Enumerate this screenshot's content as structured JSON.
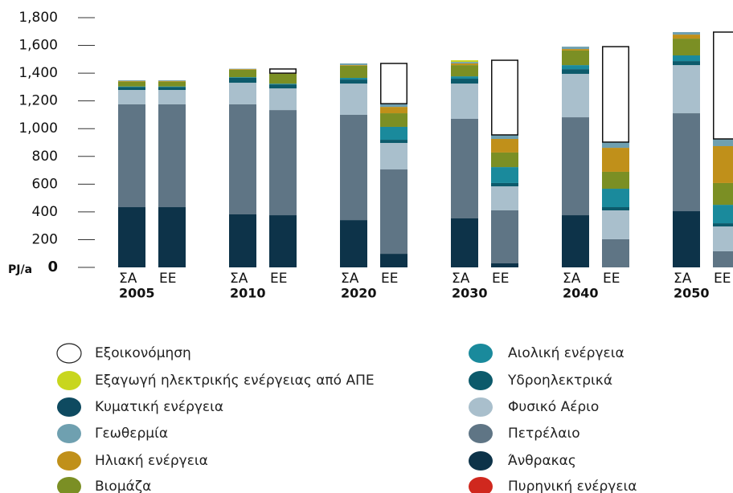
{
  "chart_data": {
    "type": "stacked_bar",
    "y_unit": "PJ/a",
    "ylim": [
      0,
      1800
    ],
    "yticks": [
      0,
      200,
      400,
      600,
      800,
      {
        "value": 1000,
        "label": "1,000"
      },
      {
        "value": 1200,
        "label": "1,200"
      },
      {
        "value": 1400,
        "label": "1,400"
      },
      {
        "value": 1600,
        "label": "1,600"
      },
      {
        "value": 1800,
        "label": "1,800"
      }
    ],
    "groups": [
      "2005",
      "2010",
      "2020",
      "2030",
      "2040",
      "2050"
    ],
    "categories": [
      "ΣΑ",
      "ΕΕ",
      "ΣΑ",
      "ΕΕ",
      "ΣΑ",
      "ΕΕ",
      "ΣΑ",
      "ΕΕ",
      "ΣΑ",
      "ΕΕ",
      "ΣΑ",
      "ΕΕ"
    ],
    "category_colors": [
      "#111111",
      "#7b8f24"
    ],
    "series": [
      {
        "name": "Άνθρακας",
        "color": "#0d3349",
        "values": [
          434,
          434,
          382,
          376,
          341,
          98,
          353,
          29,
          376,
          0,
          405,
          0
        ]
      },
      {
        "name": "Πετρέλαιο",
        "color": "#5f7585",
        "values": [
          741,
          741,
          793,
          758,
          759,
          608,
          718,
          382,
          706,
          203,
          706,
          116
        ]
      },
      {
        "name": "Φυσικό Αέριο",
        "color": "#a9bfcc",
        "values": [
          104,
          104,
          156,
          156,
          225,
          191,
          254,
          173,
          313,
          208,
          347,
          179
        ]
      },
      {
        "name": "Υδροηλεκτρικά",
        "color": "#0c5a6b",
        "values": [
          20,
          20,
          35,
          29,
          29,
          23,
          35,
          24,
          34,
          23,
          29,
          23
        ]
      },
      {
        "name": "Αιολική ενέργεια",
        "color": "#1a8a9c",
        "values": [
          5,
          5,
          5,
          5,
          12,
          93,
          17,
          115,
          29,
          133,
          41,
          133
        ]
      },
      {
        "name": "Βιομάζα",
        "color": "#7b8f24",
        "values": [
          35,
          35,
          53,
          71,
          87,
          98,
          81,
          105,
          105,
          122,
          121,
          157
        ]
      },
      {
        "name": "Ηλιακή ενέργεια",
        "color": "#c0901a",
        "values": [
          5,
          5,
          5,
          5,
          5,
          46,
          12,
          98,
          11,
          173,
          29,
          266
        ]
      },
      {
        "name": "Γεωθερμία",
        "color": "#6fa0b0",
        "values": [
          5,
          5,
          3,
          0,
          12,
          23,
          11,
          29,
          17,
          41,
          18,
          52
        ]
      },
      {
        "name": "Κυματική ενέργεια",
        "color": "#0e4a60",
        "values": [
          0,
          0,
          0,
          0,
          0,
          0,
          0,
          0,
          0,
          0,
          0,
          0
        ]
      },
      {
        "name": "Εξαγωγή ηλεκτρικής ενέργειας από ΑΠΕ",
        "color": "#c8d61e",
        "values": [
          0,
          0,
          0,
          0,
          0,
          0,
          12,
          0,
          0,
          0,
          0,
          0
        ]
      },
      {
        "name": "Εξοικονόμηση",
        "color": "#ffffff",
        "values": [
          0,
          0,
          0,
          30,
          0,
          290,
          0,
          538,
          0,
          688,
          0,
          770
        ]
      },
      {
        "name": "Πυρηνική ενέργεια",
        "color": "#d0281e",
        "values": [
          0,
          0,
          0,
          0,
          0,
          0,
          0,
          0,
          0,
          0,
          0,
          0
        ]
      }
    ]
  }
}
